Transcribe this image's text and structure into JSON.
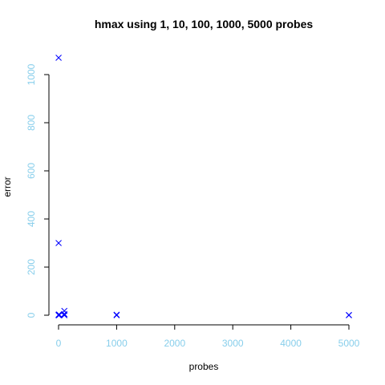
{
  "chart_data": {
    "type": "scatter",
    "title": "hmax   using 1, 10, 100, 1000, 5000 probes",
    "xlabel": "probes",
    "ylabel": "error",
    "xlim": [
      0,
      5000
    ],
    "ylim": [
      0,
      1070
    ],
    "x_ticks": [
      0,
      1000,
      2000,
      3000,
      4000,
      5000
    ],
    "y_ticks": [
      0,
      200,
      400,
      600,
      800,
      1000
    ],
    "grid": false,
    "legend": "none",
    "marker": "x",
    "colors": {
      "points": "#0000ff",
      "tick_labels": "#87ceeb",
      "axes": "#000000"
    },
    "points": [
      {
        "x": 1,
        "y": 1070
      },
      {
        "x": 1,
        "y": 300
      },
      {
        "x": 1,
        "y": 2
      },
      {
        "x": 1,
        "y": 0
      },
      {
        "x": 10,
        "y": 3
      },
      {
        "x": 10,
        "y": 0
      },
      {
        "x": 100,
        "y": 18
      },
      {
        "x": 100,
        "y": 5
      },
      {
        "x": 100,
        "y": 1
      },
      {
        "x": 100,
        "y": 0
      },
      {
        "x": 1000,
        "y": 2
      },
      {
        "x": 1000,
        "y": 0
      },
      {
        "x": 5000,
        "y": 1
      },
      {
        "x": 5000,
        "y": 0
      }
    ]
  }
}
